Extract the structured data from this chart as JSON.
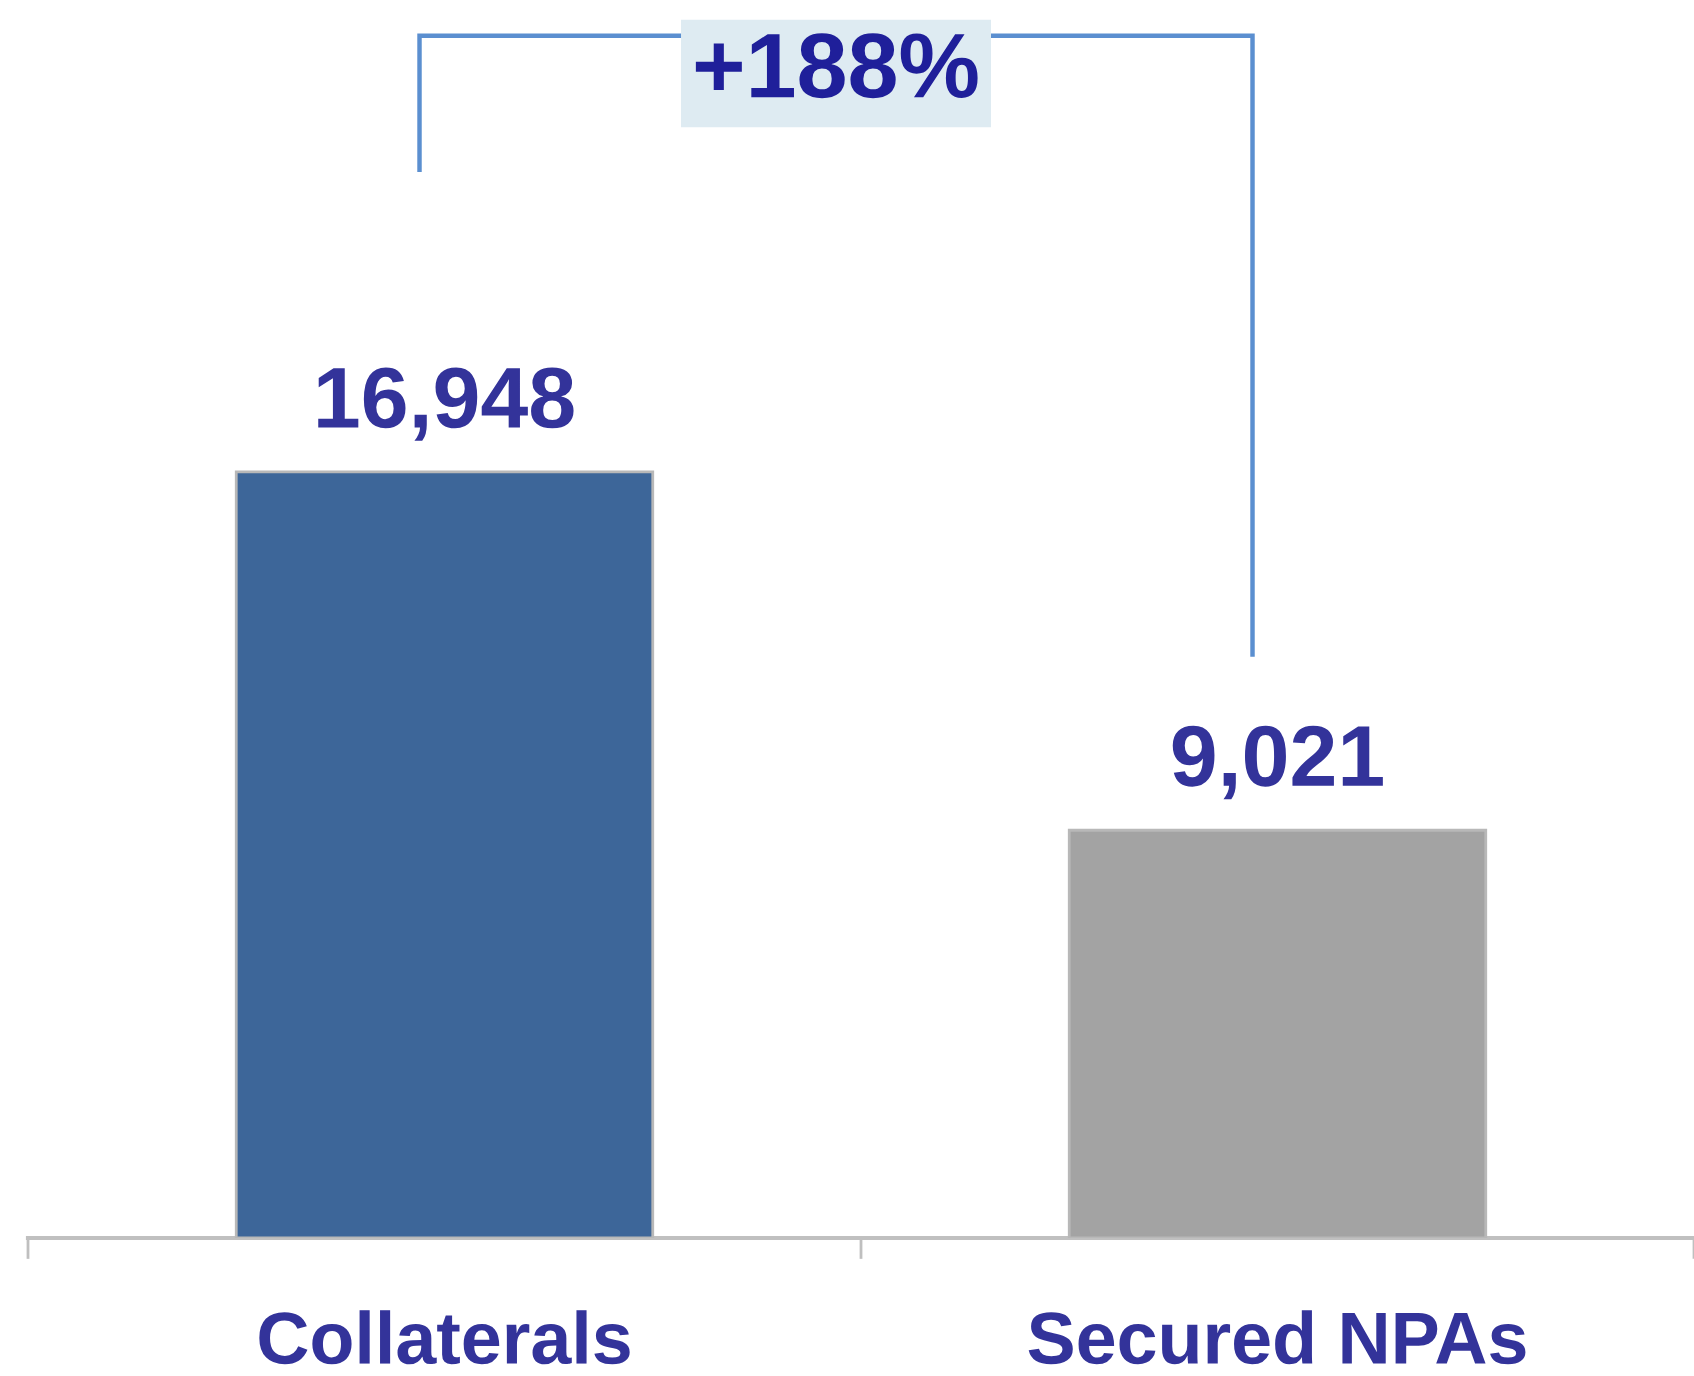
{
  "chart_data": {
    "type": "bar",
    "categories": [
      "Collaterals",
      "Secured NPAs"
    ],
    "values": [
      16948,
      9021
    ],
    "value_labels": [
      "16,948",
      "9,021"
    ],
    "colors": [
      "#3d6699",
      "#a3a3a3"
    ],
    "annotations": [
      "+188%"
    ],
    "tick_labels": "x"
  }
}
